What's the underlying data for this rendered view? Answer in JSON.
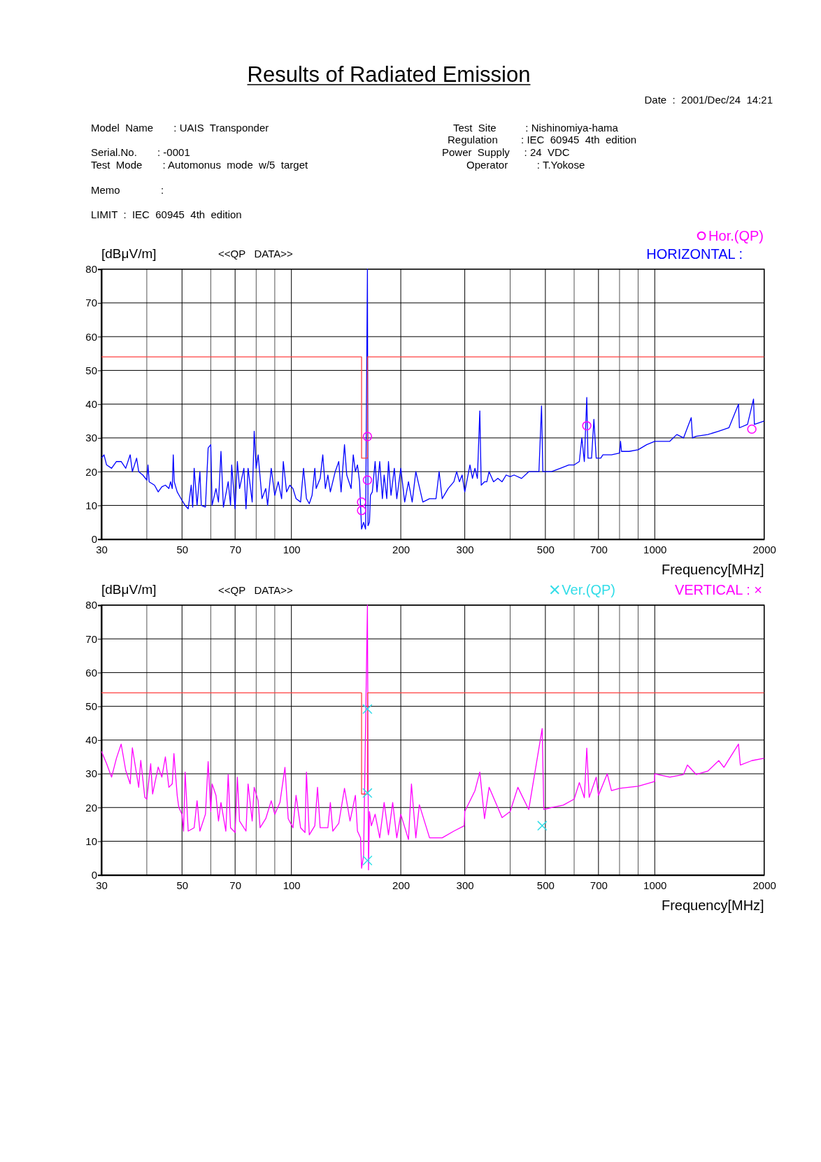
{
  "chart_data": [
    {
      "type": "line",
      "title": "Results of Radiated Emission",
      "subtitle": "HORIZONTAL :",
      "ylabel": "[dBμV/m]",
      "xlabel": "Frequency[MHz]",
      "log": "x",
      "xlim": [
        30,
        2000
      ],
      "xticks": [
        30,
        {
          "value": 40,
          "label": null
        },
        50,
        {
          "value": 60,
          "label": null
        },
        70,
        {
          "value": 80,
          "label": null
        },
        {
          "value": 90,
          "label": null
        },
        100,
        200,
        300,
        {
          "value": 400,
          "label": null
        },
        500,
        {
          "value": 600,
          "label": null
        },
        700,
        {
          "value": 800,
          "label": null
        },
        {
          "value": 900,
          "label": null
        },
        1000,
        2000
      ],
      "ylim": [
        0,
        80
      ],
      "yticks": [
        0,
        10,
        20,
        30,
        40,
        50,
        60,
        70,
        80
      ],
      "grid": true,
      "legend": "top right",
      "annotations": [
        "Date  :  2001/Dec/24  14:21",
        "Model  Name       : UAIS  Transponder",
        "Serial.No.       : -0001",
        "Test  Mode       : Automonus  mode  w/5  target",
        "Memo              :",
        "LIMIT  :  IEC  60945  4th  edition",
        "Test  Site          : Nishinomiya-hama",
        "Regulation        : IEC  60945  4th  edition",
        "Power  Supply     : 24  VDC",
        "Operator          : T.Yokose",
        "<<QP   DATA>>"
      ],
      "series": [
        {
          "type": "line",
          "color": "#0000ff",
          "x": [
            30,
            30.5,
            31,
            32,
            33,
            34,
            35,
            36,
            36.5,
            37.5,
            38,
            39,
            40,
            40.3,
            40.6,
            42,
            43,
            44,
            45,
            46,
            46.5,
            47,
            47.3,
            47.6,
            48.5,
            50,
            51,
            52,
            53,
            53.5,
            54,
            55,
            56,
            56.5,
            58,
            59,
            60,
            60.5,
            62,
            63,
            64,
            65,
            67,
            68,
            68.5,
            70,
            71,
            72,
            74,
            75,
            76,
            78,
            79,
            80,
            81,
            83,
            85,
            86,
            88,
            90,
            92,
            94,
            95,
            97,
            99,
            101,
            103,
            106,
            108,
            110,
            112,
            114,
            116,
            117,
            120,
            122,
            124,
            126,
            128,
            132,
            135,
            137,
            140,
            142,
            146,
            148,
            150,
            152,
            154,
            155,
            156,
            158,
            160,
            161.9,
            162.5,
            164,
            165,
            167,
            170,
            172,
            175,
            178,
            180,
            183,
            185,
            188,
            192,
            195,
            200,
            205,
            210,
            215,
            220,
            230,
            240,
            250,
            255,
            260,
            270,
            280,
            285,
            290,
            295,
            300,
            305,
            310,
            315,
            320,
            325,
            330,
            333,
            340,
            345,
            350,
            360,
            370,
            380,
            390,
            400,
            410,
            430,
            450,
            480,
            488,
            492,
            520,
            550,
            580,
            600,
            620,
            630,
            640,
            650,
            655,
            670,
            680,
            690,
            710,
            720,
            760,
            800,
            805,
            810,
            850,
            900,
            950,
            1000,
            1100,
            1150,
            1200,
            1260,
            1270,
            1300,
            1400,
            1500,
            1600,
            1700,
            1710,
            1800,
            1870,
            1880,
            2000
          ],
          "values": [
            24,
            25,
            22,
            21,
            23,
            23,
            21,
            25,
            20,
            24,
            20,
            19,
            17.5,
            22,
            17,
            16,
            14,
            15.5,
            16,
            15,
            17,
            15,
            25,
            17,
            14,
            11.5,
            10,
            9,
            16,
            9.5,
            21,
            10,
            20,
            10,
            9.5,
            27,
            28,
            10,
            15,
            11,
            26,
            9.5,
            17,
            10,
            22,
            9,
            23,
            15,
            21,
            9,
            21,
            11,
            32,
            21,
            25,
            12,
            15,
            10,
            21,
            13,
            17,
            12,
            23,
            14,
            16,
            15,
            12,
            11,
            21,
            12,
            10.5,
            13,
            21,
            15,
            18,
            25,
            15,
            19,
            14,
            20,
            23,
            14,
            28,
            19,
            15,
            25,
            20,
            22,
            17,
            10,
            3,
            5,
            3,
            80,
            4,
            5,
            13,
            14,
            23,
            14,
            23,
            12,
            19,
            12,
            23,
            13,
            21,
            12,
            21,
            11,
            17,
            11,
            20,
            11,
            12,
            12,
            20,
            12,
            15,
            17,
            20,
            17,
            19,
            14,
            18,
            22,
            18,
            21,
            18,
            38,
            16,
            17,
            17,
            20,
            17,
            18,
            17,
            19,
            18.5,
            19,
            18,
            20,
            20,
            39.5,
            20,
            20,
            21,
            22,
            22,
            23,
            30,
            23,
            42,
            24,
            24,
            35.5,
            24,
            24,
            25,
            25,
            25.5,
            29,
            26,
            26,
            26.5,
            28,
            29,
            29,
            31,
            30,
            36,
            30,
            30.5,
            31,
            32,
            33,
            40,
            33,
            34,
            41.5,
            34,
            35
          ]
        },
        {
          "type": "line",
          "color": "#ff4040",
          "x": [
            30,
            156,
            156,
            162,
            162,
            2000
          ],
          "values": [
            54,
            54,
            24,
            24,
            54,
            54
          ]
        },
        {
          "type": "scatter",
          "name": "Hor.(QP)",
          "color": "#ff00ff",
          "marker": "circle",
          "x": [
            156,
            156,
            161.9,
            161.9,
            650,
            1850
          ],
          "values": [
            11,
            8.5,
            17.5,
            30.4,
            33.6,
            32.6
          ]
        }
      ]
    },
    {
      "type": "line",
      "subtitle": "VERTICAL : ×",
      "ylabel": "[dBμV/m]",
      "xlabel": "Frequency[MHz]",
      "log": "x",
      "xlim": [
        30,
        2000
      ],
      "xticks": [
        30,
        {
          "value": 40,
          "label": null
        },
        50,
        {
          "value": 60,
          "label": null
        },
        70,
        {
          "value": 80,
          "label": null
        },
        {
          "value": 90,
          "label": null
        },
        100,
        200,
        300,
        {
          "value": 400,
          "label": null
        },
        500,
        {
          "value": 600,
          "label": null
        },
        700,
        {
          "value": 800,
          "label": null
        },
        {
          "value": 900,
          "label": null
        },
        1000,
        2000
      ],
      "ylim": [
        0,
        80
      ],
      "yticks": [
        0,
        10,
        20,
        30,
        40,
        50,
        60,
        70,
        80
      ],
      "grid": true,
      "legend": "top right",
      "annotations": [
        "<<QP   DATA>>"
      ],
      "series": [
        {
          "type": "line",
          "color": "#ff00ff",
          "x": [
            30,
            31,
            32,
            33,
            34,
            35,
            36,
            36.5,
            38,
            38.5,
            39.5,
            40,
            41,
            41.5,
            43,
            44,
            45,
            46,
            47,
            47.5,
            48.5,
            49,
            50,
            50.5,
            51,
            52,
            54,
            55,
            56,
            58,
            59,
            60,
            60.5,
            62,
            63,
            64,
            66,
            67,
            68,
            70,
            71,
            72,
            75,
            76,
            78,
            79,
            81,
            82,
            85,
            88,
            90,
            93,
            96,
            98,
            101,
            103,
            106,
            109,
            110,
            112,
            116,
            118,
            120,
            126,
            128,
            130,
            135,
            140,
            145,
            150,
            152,
            155,
            156,
            158,
            161.9,
            163,
            164,
            166,
            170,
            175,
            180,
            185,
            190,
            195,
            200,
            210,
            214,
            220,
            225,
            240,
            260,
            280,
            299,
            300,
            320,
            330,
            340,
            350,
            380,
            400,
            420,
            450,
            490,
            495,
            520,
            560,
            600,
            620,
            640,
            650,
            660,
            690,
            700,
            740,
            760,
            800,
            900,
            999,
            1000,
            1100,
            1200,
            1230,
            1300,
            1400,
            1500,
            1550,
            1700,
            1720,
            1850,
            2000
          ],
          "values": [
            36.7,
            33,
            29,
            34.6,
            38.8,
            31,
            27,
            37.7,
            26,
            34,
            23,
            22.5,
            33,
            24,
            32,
            29,
            35,
            26,
            27,
            36,
            23.5,
            20,
            18,
            13,
            30.5,
            13,
            14,
            22,
            13,
            18,
            33.6,
            18.8,
            27,
            23.6,
            16,
            21.5,
            13,
            29.8,
            14,
            12.6,
            29,
            16,
            13,
            27,
            16,
            26,
            22,
            14,
            16.7,
            22,
            18,
            21.5,
            31.9,
            16.7,
            14,
            23.6,
            14,
            12.6,
            30.5,
            11.9,
            14.6,
            26,
            14,
            14,
            21.5,
            13,
            15.3,
            25.7,
            16,
            23.6,
            13,
            11,
            2,
            5.7,
            80,
            1.5,
            18.8,
            14.6,
            18,
            11,
            21.5,
            11.9,
            21.5,
            11,
            18,
            10.5,
            27,
            11,
            20.8,
            11,
            11,
            13,
            14.6,
            18.8,
            25,
            30.5,
            16.7,
            26,
            17,
            18.8,
            26,
            19.4,
            43.4,
            19.4,
            20,
            20.7,
            22.5,
            27.4,
            22.9,
            37.6,
            23,
            29,
            23.6,
            30,
            25,
            25.7,
            26.3,
            27.7,
            30,
            29,
            29.8,
            32.6,
            29.8,
            30.8,
            33.9,
            31.9,
            38.8,
            32.6,
            33.9,
            34.6
          ]
        },
        {
          "type": "line",
          "color": "#ff4040",
          "x": [
            30,
            156,
            156,
            162,
            162,
            2000
          ],
          "values": [
            54,
            54,
            24,
            24,
            54,
            54
          ]
        },
        {
          "type": "scatter",
          "name": "Ver.(QP)",
          "color": "#33dde8",
          "marker": "cross",
          "x": [
            161.9,
            161.9,
            161.9,
            490
          ],
          "values": [
            49.2,
            24.3,
            4.3,
            14.6
          ]
        }
      ]
    }
  ]
}
